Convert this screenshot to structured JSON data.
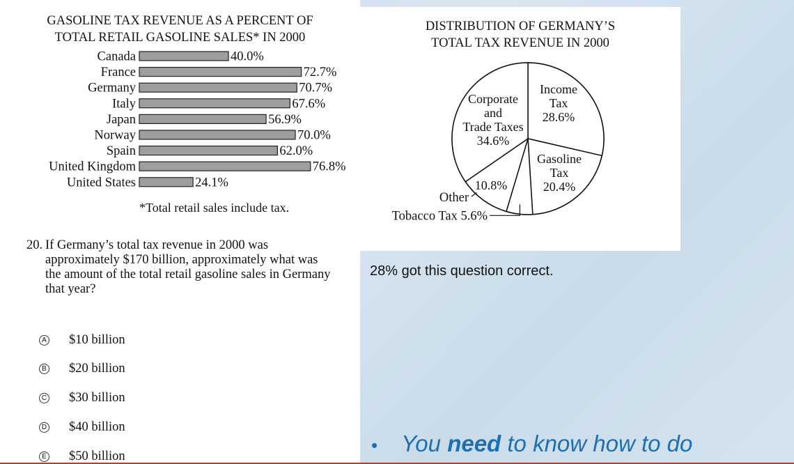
{
  "chart_data": [
    {
      "type": "bar",
      "orientation": "horizontal",
      "title_lines": [
        "GASOLINE TAX REVENUE AS A PERCENT OF",
        "TOTAL RETAIL GASOLINE SALES* IN 2000"
      ],
      "categories": [
        "Canada",
        "France",
        "Germany",
        "Italy",
        "Japan",
        "Norway",
        "Spain",
        "United Kingdom",
        "United States"
      ],
      "values": [
        40.0,
        72.7,
        70.7,
        67.6,
        56.9,
        70.0,
        62.0,
        76.8,
        24.1
      ],
      "labels": [
        "40.0%",
        "72.7%",
        "70.7%",
        "67.6%",
        "56.9%",
        "70.0%",
        "62.0%",
        "76.8%",
        "24.1%"
      ],
      "xlim": [
        0,
        100
      ],
      "footnote": "*Total retail sales include tax.",
      "bar_color": "#9e9e9e"
    },
    {
      "type": "pie",
      "title_lines": [
        "DISTRIBUTION OF GERMANY’S",
        "TOTAL TAX REVENUE IN 2000"
      ],
      "slices": [
        {
          "label_lines": [
            "Income",
            "Tax",
            "28.6%"
          ],
          "value": 28.6
        },
        {
          "label_lines": [
            "Gasoline",
            "Tax",
            "20.4%"
          ],
          "value": 20.4
        },
        {
          "label_lines": [],
          "value": 5.6,
          "callout": "Tobacco Tax  5.6%"
        },
        {
          "label_lines": [
            "10.8%"
          ],
          "value": 10.8,
          "callout": "Other"
        },
        {
          "label_lines": [
            "Corporate",
            "and",
            "Trade Taxes",
            "34.6%"
          ],
          "value": 34.6
        }
      ]
    }
  ],
  "question": {
    "number": "20.",
    "text": "If Germany’s total tax revenue in 2000 was approximately $170 billion, approximately what was the amount of the total retail gasoline sales in Germany that year?",
    "choices": [
      {
        "letter": "A",
        "text": "$10 billion"
      },
      {
        "letter": "B",
        "text": "$20 billion"
      },
      {
        "letter": "C",
        "text": "$30 billion"
      },
      {
        "letter": "D",
        "text": "$40 billion"
      },
      {
        "letter": "E",
        "text": "$50 billion"
      }
    ]
  },
  "stat_text": "28% got this question correct.",
  "bullet": {
    "pre": "You ",
    "bold": "need",
    "post": " to know how to do"
  }
}
